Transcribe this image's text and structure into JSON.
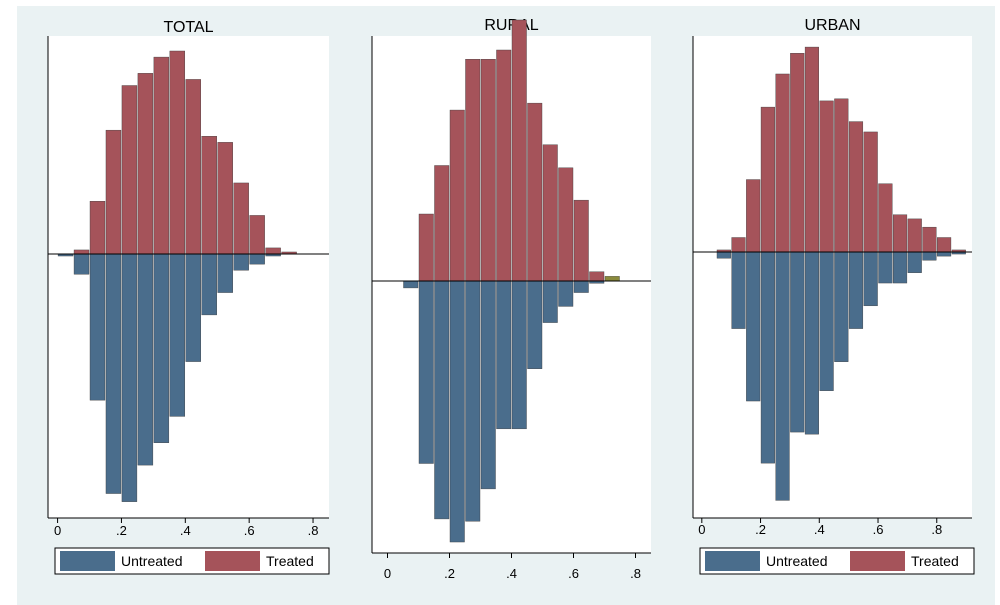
{
  "chart_data": [
    {
      "type": "bar",
      "title": "TOTAL",
      "xlim": [
        -0.03,
        0.85
      ],
      "x_ticks": [
        "0",
        ".2",
        ".4",
        ".6",
        ".8"
      ],
      "x_tick_values": [
        0,
        0.2,
        0.4,
        0.6,
        0.8
      ],
      "legend": {
        "position": "bottom",
        "entries": [
          "Untreated",
          "Treated"
        ]
      },
      "y_axis_labels": "none",
      "bar_width": 0.05,
      "series": [
        {
          "name": "Treated",
          "color": "#a5535a",
          "x": [
            0.025,
            0.075,
            0.125,
            0.175,
            0.225,
            0.275,
            0.325,
            0.375,
            0.425,
            0.475,
            0.525,
            0.575,
            0.625,
            0.675,
            0.725
          ],
          "values": [
            0,
            2,
            26,
            61,
            83,
            89,
            97,
            100,
            86,
            58,
            55,
            35,
            19,
            3,
            1
          ]
        },
        {
          "name": "Untreated",
          "color": "#4a6d8c",
          "x": [
            0.025,
            0.075,
            0.125,
            0.175,
            0.225,
            0.275,
            0.325,
            0.375,
            0.425,
            0.475,
            0.525,
            0.575,
            0.625,
            0.675,
            0.725
          ],
          "values": [
            -1,
            -10,
            -72,
            -118,
            -122,
            -104,
            -93,
            -80,
            -53,
            -30,
            -19,
            -8,
            -5,
            -1,
            0
          ]
        }
      ]
    },
    {
      "type": "bar",
      "title": "RURAL",
      "xlim": [
        -0.05,
        0.85
      ],
      "x_ticks": [
        "0",
        ".2",
        ".4",
        ".6",
        ".8"
      ],
      "x_tick_values": [
        0,
        0.2,
        0.4,
        0.6,
        0.8
      ],
      "legend": {
        "position": "none",
        "entries": []
      },
      "y_axis_labels": "none",
      "bar_width": 0.05,
      "series": [
        {
          "name": "Treated",
          "color": "#a5535a",
          "x": [
            0.075,
            0.125,
            0.175,
            0.225,
            0.275,
            0.325,
            0.375,
            0.425,
            0.475,
            0.525,
            0.575,
            0.625,
            0.675,
            0.725
          ],
          "values": [
            0,
            29,
            50,
            74,
            96,
            96,
            100,
            113,
            77,
            59,
            49,
            35,
            4,
            2
          ]
        },
        {
          "name": "Untreated",
          "color": "#4a6d8c",
          "x": [
            0.075,
            0.125,
            0.175,
            0.225,
            0.275,
            0.325,
            0.375,
            0.425,
            0.475,
            0.525,
            0.575,
            0.625,
            0.675,
            0.725
          ],
          "values": [
            -3,
            -79,
            -103,
            -113,
            -104,
            -90,
            -64,
            -64,
            -38,
            -18,
            -11,
            -5,
            -1,
            0
          ]
        }
      ]
    },
    {
      "type": "bar",
      "title": "URBAN",
      "xlim": [
        -0.03,
        0.92
      ],
      "x_ticks": [
        "0",
        ".2",
        ".4",
        ".6",
        ".8"
      ],
      "x_tick_values": [
        0,
        0.2,
        0.4,
        0.6,
        0.8
      ],
      "legend": {
        "position": "bottom",
        "entries": [
          "Untreated",
          "Treated"
        ]
      },
      "y_axis_labels": "none",
      "bar_width": 0.05,
      "series": [
        {
          "name": "Treated",
          "color": "#a5535a",
          "x": [
            0.075,
            0.125,
            0.175,
            0.225,
            0.275,
            0.325,
            0.375,
            0.425,
            0.475,
            0.525,
            0.575,
            0.625,
            0.675,
            0.725,
            0.775,
            0.825,
            0.875
          ],
          "values": [
            1,
            7,
            35,
            70,
            86,
            96,
            99,
            73,
            74,
            63,
            58,
            33,
            18,
            16,
            12,
            7,
            1
          ]
        },
        {
          "name": "Untreated",
          "color": "#4a6d8c",
          "x": [
            0.075,
            0.125,
            0.175,
            0.225,
            0.275,
            0.325,
            0.375,
            0.425,
            0.475,
            0.525,
            0.575,
            0.625,
            0.675,
            0.725,
            0.775,
            0.825,
            0.875
          ],
          "values": [
            -3,
            -37,
            -72,
            -102,
            -120,
            -87,
            -88,
            -67,
            -53,
            -37,
            -26,
            -15,
            -15,
            -10,
            -4,
            -2,
            -1
          ]
        }
      ]
    }
  ]
}
